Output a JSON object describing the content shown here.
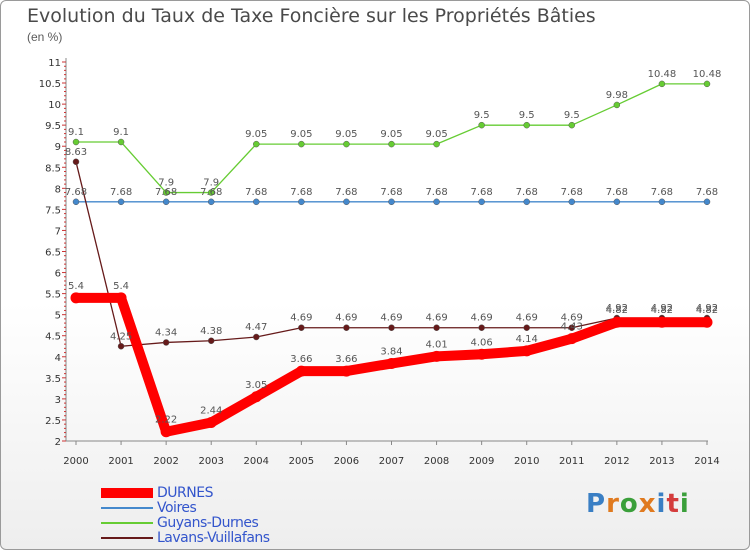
{
  "title": "Evolution du Taux de Taxe Foncière sur les Propriétés Bâties",
  "subtitle": "(en %)",
  "logo": {
    "text": "Proxiti",
    "colors": [
      "#3a7fc4",
      "#e07a1f",
      "#3a9f3a",
      "#e07a1f",
      "#3a7fc4",
      "#d43c3c",
      "#3a9f3a"
    ]
  },
  "chart_data": {
    "type": "line",
    "categories": [
      "2000",
      "2001",
      "2002",
      "2003",
      "2004",
      "2005",
      "2006",
      "2007",
      "2008",
      "2009",
      "2010",
      "2011",
      "2012",
      "2013",
      "2014"
    ],
    "ylim": [
      2,
      11
    ],
    "yticks": [
      "2",
      "2.5",
      "3",
      "3.5",
      "4",
      "4.5",
      "5",
      "5.5",
      "6",
      "6.5",
      "7",
      "7.5",
      "8",
      "8.5",
      "9",
      "9.5",
      "10",
      "10.5",
      "11"
    ],
    "grid": false,
    "series": [
      {
        "name": "DURNES",
        "color": "#ff0000",
        "values": [
          5.4,
          5.4,
          2.22,
          2.44,
          3.05,
          3.66,
          3.66,
          3.84,
          4.01,
          4.06,
          4.14,
          4.43,
          4.82,
          4.82,
          4.82
        ],
        "labels": [
          "5.4",
          "5.4",
          "2.22",
          "2.44",
          "3.05",
          "3.66",
          "3.66",
          "3.84",
          "4.01",
          "4.06",
          "4.14",
          "4.43",
          "4.82",
          "4.82",
          "4.82"
        ]
      },
      {
        "name": "Voires",
        "color": "#4488cc",
        "values": [
          7.68,
          7.68,
          7.68,
          7.68,
          7.68,
          7.68,
          7.68,
          7.68,
          7.68,
          7.68,
          7.68,
          7.68,
          7.68,
          7.68,
          7.68
        ],
        "labels": [
          "7.68",
          "7.68",
          "7.68",
          "7.68",
          "7.68",
          "7.68",
          "7.68",
          "7.68",
          "7.68",
          "7.68",
          "7.68",
          "7.68",
          "7.68",
          "7.68",
          "7.68"
        ]
      },
      {
        "name": "Guyans-Durnes",
        "color": "#66cc33",
        "values": [
          9.1,
          9.1,
          7.9,
          7.9,
          9.05,
          9.05,
          9.05,
          9.05,
          9.05,
          9.5,
          9.5,
          9.5,
          9.98,
          10.48,
          10.48
        ],
        "labels": [
          "9.1",
          "9.1",
          "7.9",
          "7.9",
          "9.05",
          "9.05",
          "9.05",
          "9.05",
          "9.05",
          "9.5",
          "9.5",
          "9.5",
          "9.98",
          "10.48",
          "10.48"
        ]
      },
      {
        "name": "Lavans-Vuillafans",
        "color": "#661a1a",
        "values": [
          8.63,
          4.25,
          4.34,
          4.38,
          4.47,
          4.69,
          4.69,
          4.69,
          4.69,
          4.69,
          4.69,
          4.69,
          4.92,
          4.92,
          4.92
        ],
        "labels": [
          "8.63",
          "4.25",
          "4.34",
          "4.38",
          "4.47",
          "4.69",
          "4.69",
          "4.69",
          "4.69",
          "4.69",
          "4.69",
          "4.69",
          "4.92",
          "4.92",
          "4.92"
        ]
      }
    ]
  }
}
